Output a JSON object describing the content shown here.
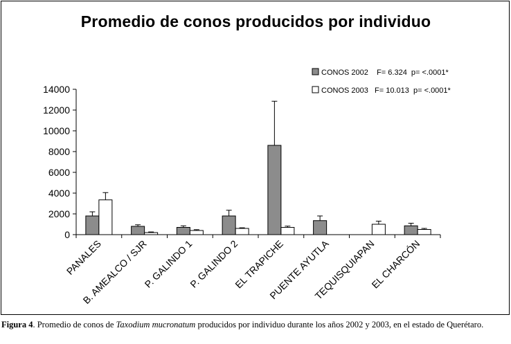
{
  "chart_data": {
    "type": "bar",
    "title": "Promedio de conos producidos por individuo",
    "xlabel": "",
    "ylabel": "",
    "ylim": [
      0,
      14000
    ],
    "yticks": [
      0,
      2000,
      4000,
      6000,
      8000,
      10000,
      12000,
      14000
    ],
    "ytick_labels": [
      "0",
      "2000",
      "4000",
      "6000",
      "8000",
      "10000",
      "12000",
      "14000"
    ],
    "categories": [
      "PANALES",
      "B. AMEALCO / SJR",
      "P. GALINDO 1",
      "P. GALINDO 2",
      "EL TRAPICHE",
      "PUENTE AYUTLA",
      "TEQUISQUIAPAN",
      "EL CHARCÓN"
    ],
    "series": [
      {
        "name": "CONOS 2002",
        "legend_label": "CONOS 2002    F= 6.324  p= <.0001*",
        "color": "#8c8c8c",
        "values": [
          1800,
          800,
          700,
          1800,
          8600,
          1350,
          null,
          850
        ],
        "errors": [
          400,
          150,
          150,
          550,
          4250,
          450,
          null,
          250
        ]
      },
      {
        "name": "CONOS 2003",
        "legend_label": "CONOS 2003   F= 10.013  p= <.0001*",
        "color": "#ffffff",
        "values": [
          3350,
          200,
          400,
          600,
          700,
          null,
          1000,
          500
        ],
        "errors": [
          700,
          60,
          80,
          60,
          120,
          null,
          300,
          100
        ]
      }
    ],
    "legend_position": "top-right"
  },
  "caption": {
    "label": "Figura 4",
    "text_before": ". Promedio de conos de ",
    "species": "Taxodium mucronatum",
    "text_after": " producidos por individuo durante los años 2002 y 2003, en el estado de Querétaro."
  }
}
